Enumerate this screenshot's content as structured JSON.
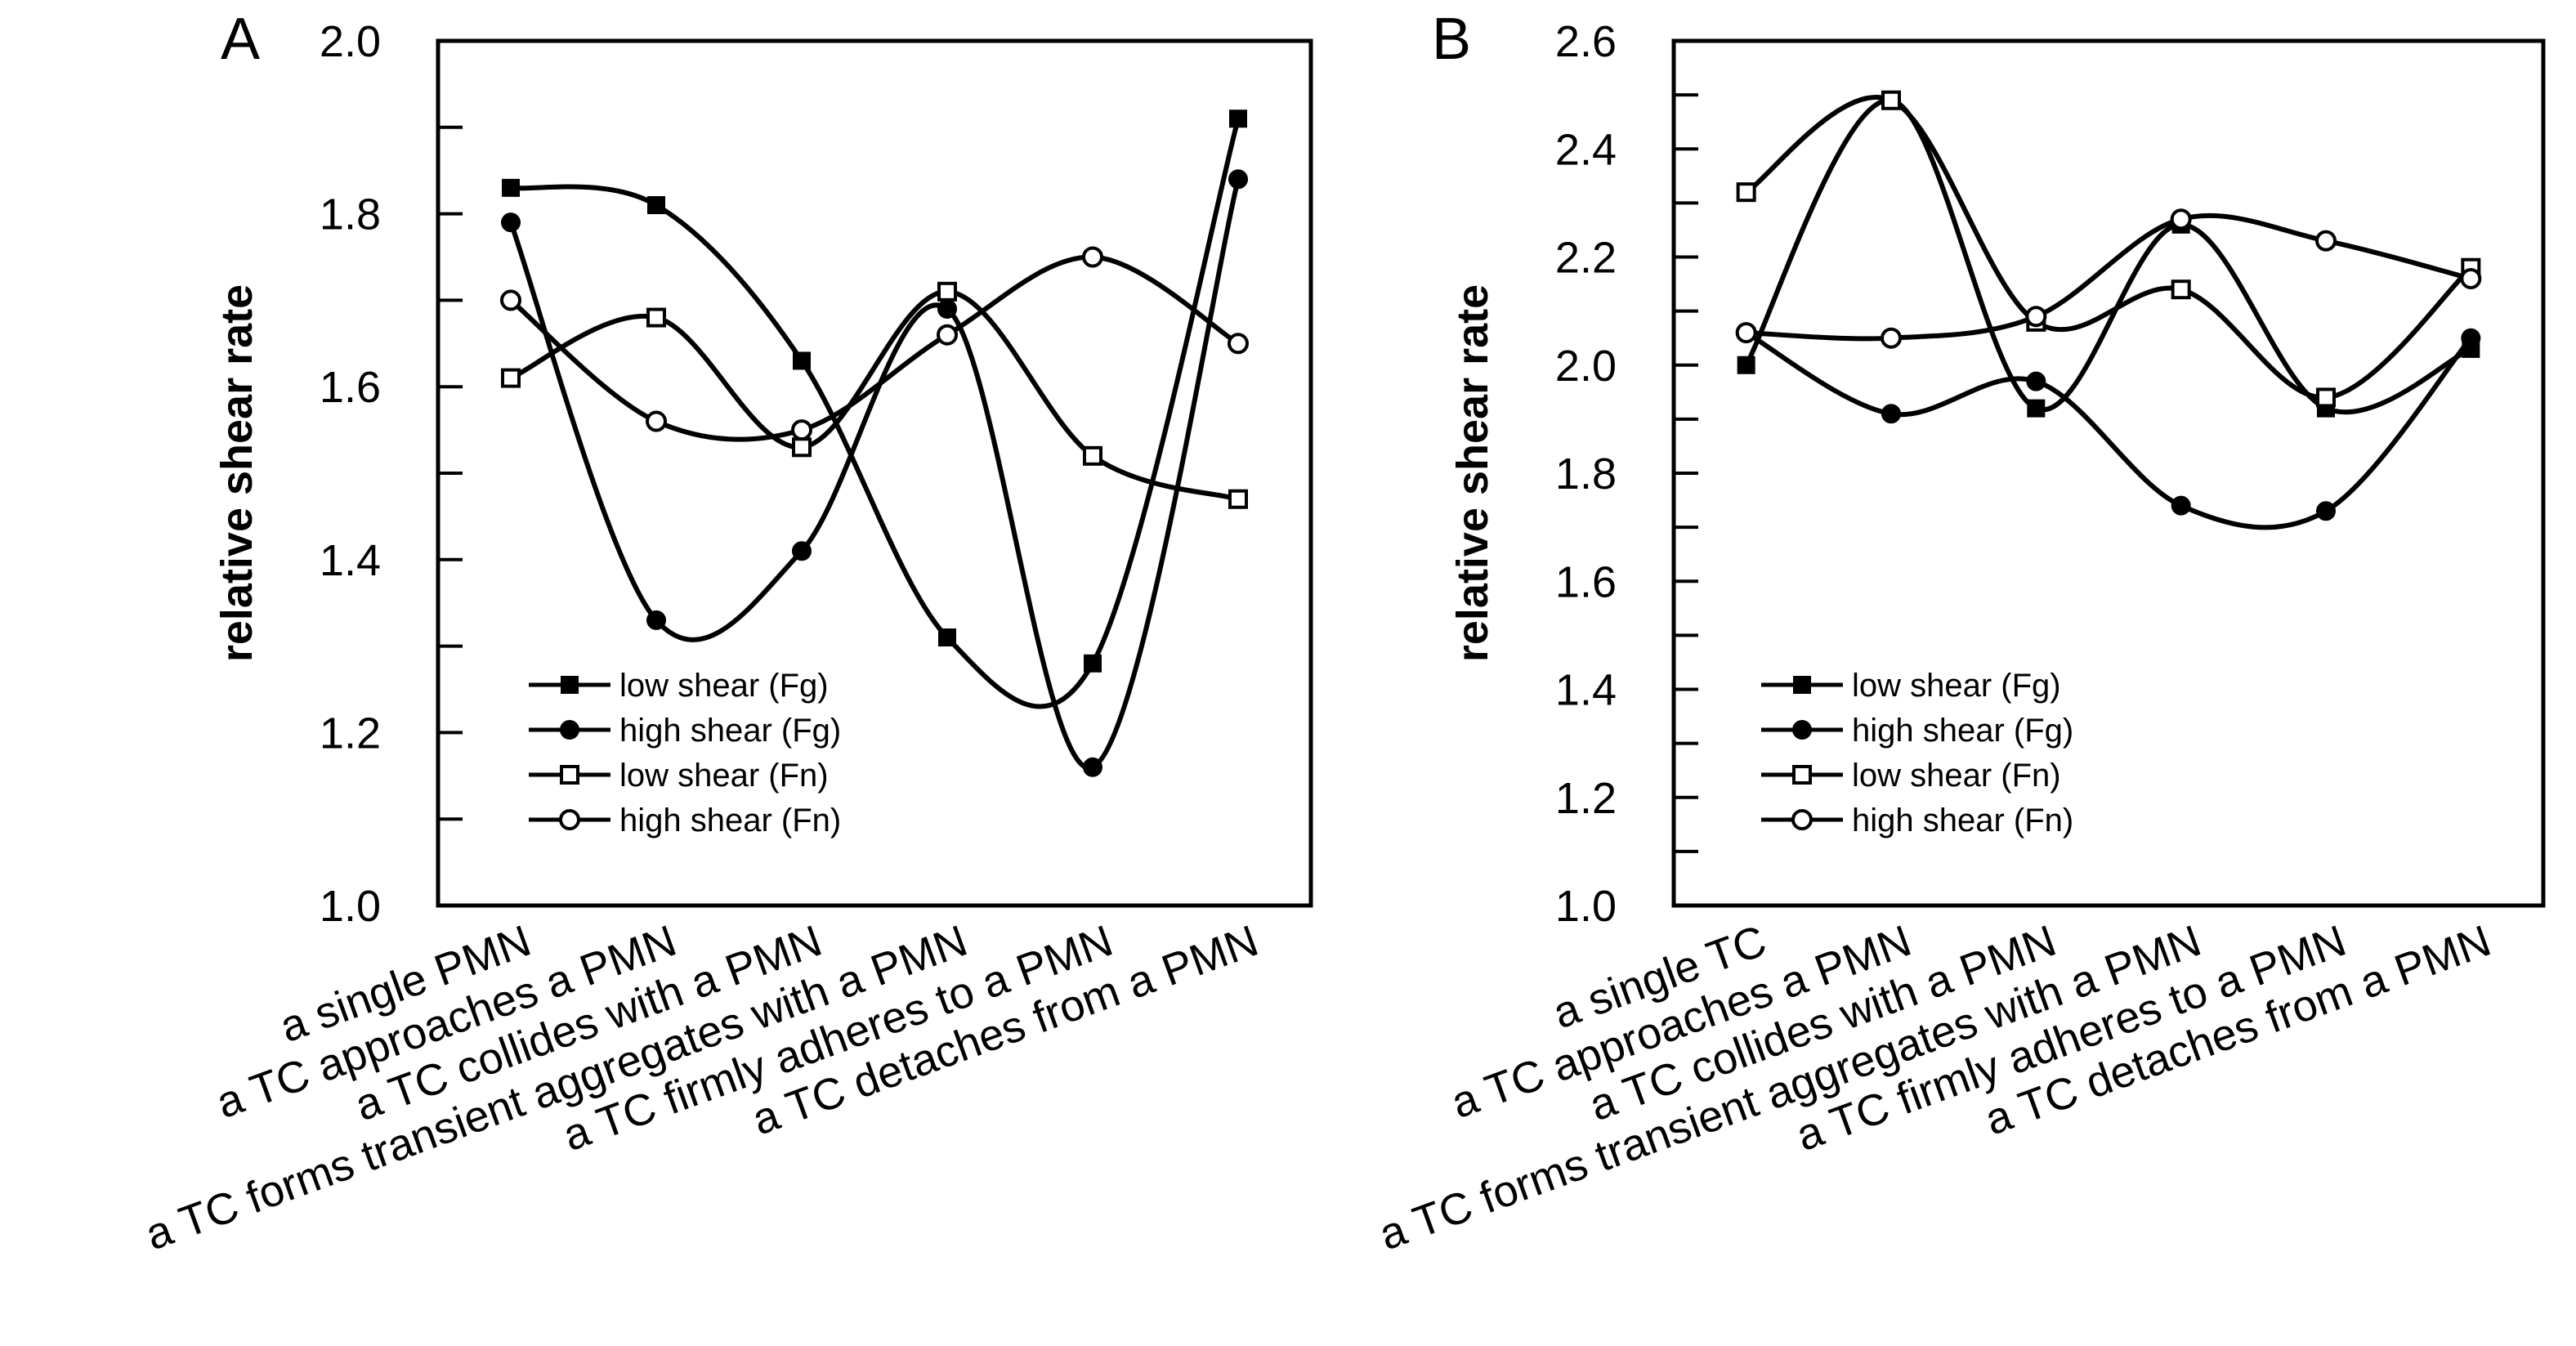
{
  "chart_data": [
    {
      "panel": "A",
      "type": "line",
      "ylabel": "relative shear rate",
      "ylim": [
        1.0,
        2.0
      ],
      "yticks": [
        1.0,
        1.2,
        1.4,
        1.6,
        1.8,
        2.0
      ],
      "ytick_labels": [
        "1.0",
        "1.2",
        "1.4",
        "1.6",
        "1.8",
        "2.0"
      ],
      "categories": [
        "a single PMN",
        "a TC approaches a PMN",
        "a TC collides with a PMN",
        "a TC forms transient aggregates with a PMN",
        "a TC firmly adheres to a PMN",
        "a TC detaches from a PMN"
      ],
      "legend_position": "lower-middle",
      "series": [
        {
          "name": "low shear (Fg)",
          "marker": "filled-square",
          "values": [
            1.83,
            1.81,
            1.63,
            1.31,
            1.28,
            1.91
          ]
        },
        {
          "name": "high shear  (Fg)",
          "marker": "filled-circle",
          "values": [
            1.79,
            1.33,
            1.41,
            1.69,
            1.16,
            1.84
          ]
        },
        {
          "name": "low shear (Fn)",
          "marker": "open-square",
          "values": [
            1.61,
            1.68,
            1.53,
            1.71,
            1.52,
            1.47
          ]
        },
        {
          "name": "high shear  (Fn)",
          "marker": "open-circle",
          "values": [
            1.7,
            1.56,
            1.55,
            1.66,
            1.75,
            1.65
          ]
        }
      ]
    },
    {
      "panel": "B",
      "type": "line",
      "ylabel": "relative shear rate",
      "ylim": [
        1.0,
        2.6
      ],
      "yticks": [
        1.0,
        1.2,
        1.4,
        1.6,
        1.8,
        2.0,
        2.2,
        2.4,
        2.6
      ],
      "ytick_labels": [
        "1.0",
        "1.2",
        "1.4",
        "1.6",
        "1.8",
        "2.0",
        "2.2",
        "2.4",
        "2.6"
      ],
      "categories": [
        "a single TC",
        "a TC approaches a PMN",
        "a TC collides with a PMN",
        "a TC forms transient aggregates with a PMN",
        "a TC firmly adheres to a PMN",
        "a TC detaches from a PMN"
      ],
      "legend_position": "lower-left",
      "series": [
        {
          "name": "low shear (Fg)",
          "marker": "filled-square",
          "values": [
            2.0,
            2.49,
            1.92,
            2.26,
            1.92,
            2.03
          ]
        },
        {
          "name": "high shear  (Fg)",
          "marker": "filled-circle",
          "values": [
            2.06,
            1.91,
            1.97,
            1.74,
            1.73,
            2.05
          ]
        },
        {
          "name": "low shear (Fn)",
          "marker": "open-square",
          "values": [
            2.32,
            2.49,
            2.08,
            2.14,
            1.94,
            2.18
          ]
        },
        {
          "name": "high shear  (Fn)",
          "marker": "open-circle",
          "values": [
            2.06,
            2.05,
            2.09,
            2.27,
            2.23,
            2.16
          ]
        }
      ]
    }
  ]
}
